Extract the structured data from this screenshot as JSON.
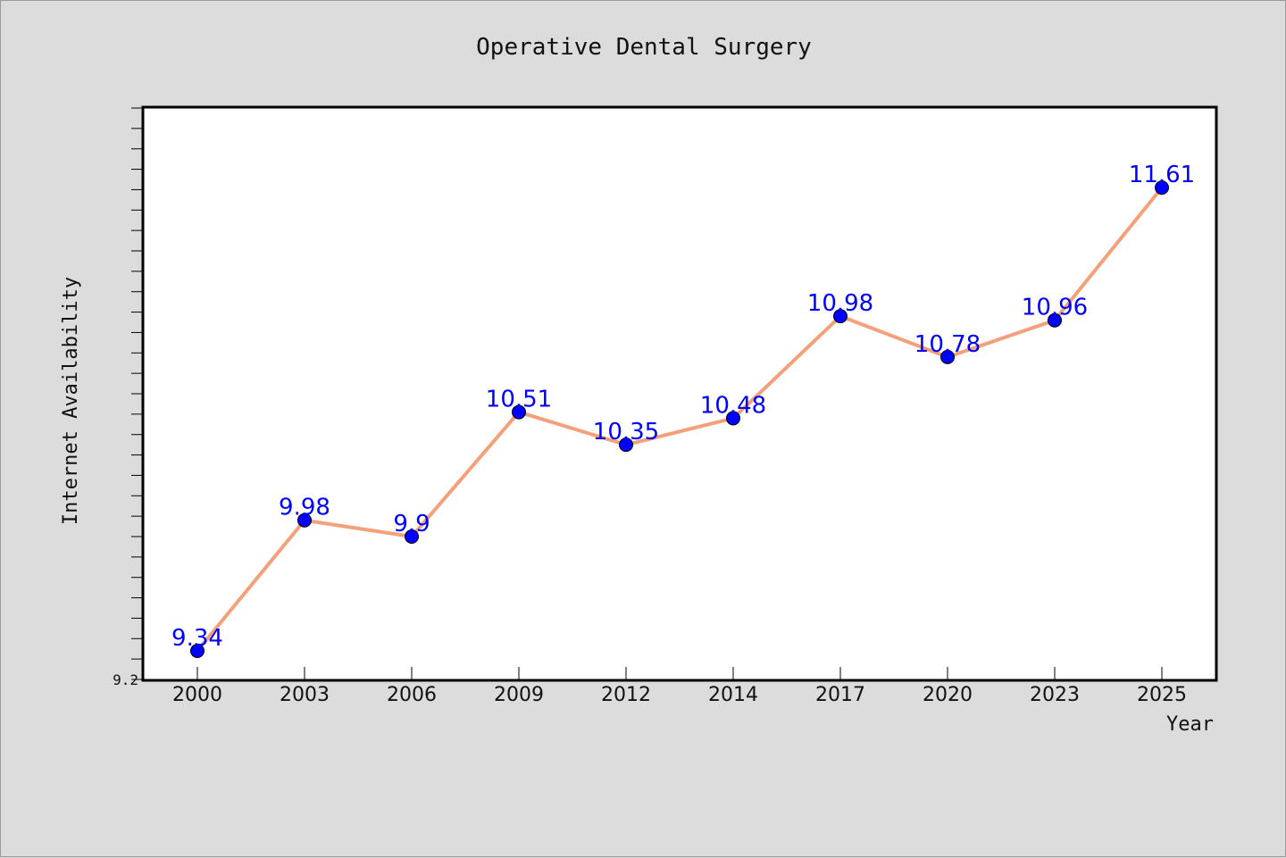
{
  "chart_data": {
    "type": "line",
    "title": "Operative Dental Surgery",
    "xlabel": "Year",
    "ylabel": "Internet Availability",
    "categories": [
      "2000",
      "2003",
      "2006",
      "2009",
      "2012",
      "2014",
      "2017",
      "2020",
      "2023",
      "2025"
    ],
    "series": [
      {
        "values": [
          9.34,
          9.98,
          9.9,
          10.51,
          10.35,
          10.48,
          10.98,
          10.78,
          10.96,
          11.61
        ],
        "labels": [
          "9.34",
          "9.98",
          "9.9",
          "10.51",
          "10.35",
          "10.48",
          "10.98",
          "10.78",
          "10.96",
          "11.61"
        ],
        "line_color": "#f4a07a",
        "marker_color": "#0000ff"
      }
    ],
    "ylim": [
      9.2,
      12.0
    ],
    "yticks_labeled": [
      "9.2"
    ],
    "grid": false,
    "legend": "none",
    "colors": {
      "background": "#dcdcdc",
      "plot_background": "#ffffff",
      "line": "#f4a07a",
      "marker": "#0000ff",
      "data_label": "#0000ff"
    }
  }
}
